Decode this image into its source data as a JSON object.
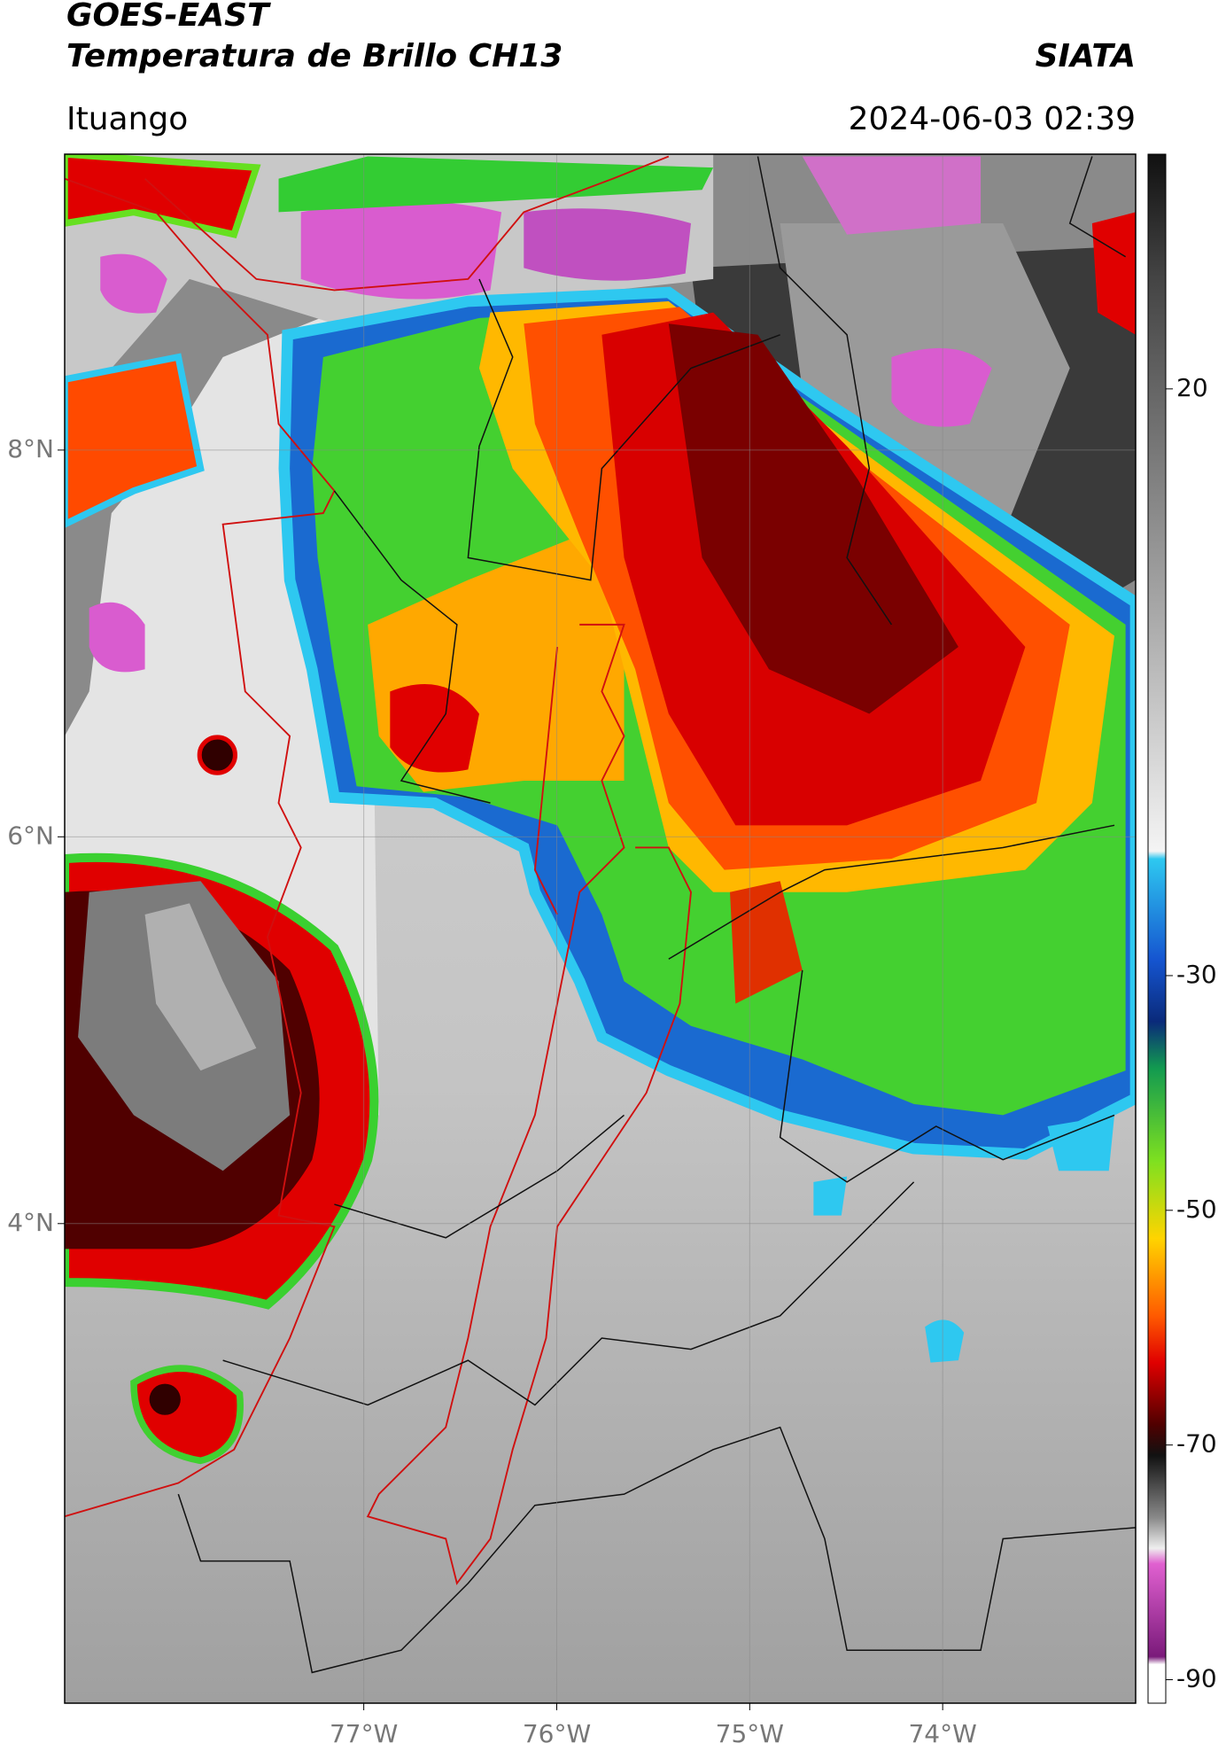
{
  "header": {
    "title": "GOES-EAST",
    "subtitle": "Temperatura de Brillo CH13",
    "source": "SIATA",
    "place": "Ituango",
    "datetime": "2024-06-03 02:39"
  },
  "map": {
    "lonlim": [
      -78.55,
      -73.0
    ],
    "latlim": [
      1.52,
      9.53
    ],
    "xticks": [
      {
        "value": -77,
        "label": "77°W"
      },
      {
        "value": -76,
        "label": "76°W"
      },
      {
        "value": -75,
        "label": "75°W"
      },
      {
        "value": -74,
        "label": "74°W"
      }
    ],
    "yticks": [
      {
        "value": 8,
        "label": "8°N"
      },
      {
        "value": 6,
        "label": "6°N"
      },
      {
        "value": 4,
        "label": "4°N"
      }
    ],
    "grid": true
  },
  "colorbar": {
    "clim": [
      -92,
      40
    ],
    "ticks": [
      20,
      -30,
      -50,
      -70,
      -90
    ]
  }
}
